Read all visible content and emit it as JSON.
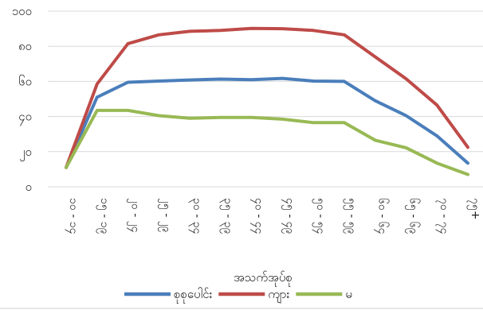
{
  "chart_data": {
    "type": "line",
    "xlabel": "အသက်အုပ်စု",
    "ylabel": "",
    "ylim": [
      0,
      100
    ],
    "yticks": [
      "၀",
      "၂၀",
      "၄၀",
      "၆၀",
      "၈၀",
      "၁၀၀"
    ],
    "ytick_values": [
      0,
      20,
      40,
      60,
      80,
      100
    ],
    "categories": [
      "၁၀ - ၁၄",
      "၁၅ - ၁၉",
      "၂၀ - ၂၄",
      "၂၅ - ၂၉",
      "၃၀ - ၃၄",
      "၃၅ - ၃၉",
      "၄၀ - ၄၄",
      "၄၅ - ၄၉",
      "၅၀ - ၅၄",
      "၅၅ - ၅၉",
      "၆၀ - ၆၄",
      "၆၅ - ၆၉",
      "၇၀ - ၇၄",
      "၇၅+"
    ],
    "grid": true,
    "legend_position": "bottom",
    "series": [
      {
        "name": "စုစုပေါင်း",
        "color": "#4a7ebb",
        "values": [
          11,
          51,
          59.5,
          60.2,
          60.8,
          61.3,
          61,
          61.7,
          60.2,
          60,
          49,
          40.5,
          29,
          13.5
        ]
      },
      {
        "name": "ကျား",
        "color": "#be4b48",
        "values": [
          11,
          58.5,
          81.5,
          86.5,
          88.5,
          89,
          90.2,
          90,
          89,
          86.5,
          74,
          61.5,
          46.5,
          22.5
        ]
      },
      {
        "name": "မ",
        "color": "#98b954",
        "values": [
          11,
          43.5,
          43.5,
          40.5,
          39,
          39.5,
          39.5,
          38.5,
          36.5,
          36.5,
          26.5,
          22.2,
          13.5,
          7
        ]
      }
    ]
  }
}
